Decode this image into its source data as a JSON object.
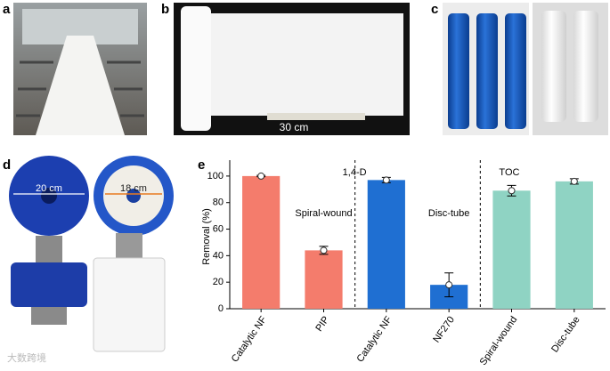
{
  "panels": {
    "a": "a",
    "b": "b",
    "c": "c",
    "d": "d",
    "e": "e"
  },
  "photo_labels": {
    "sheet_width": "30 cm",
    "disc_left": "20 cm",
    "disc_right": "18 cm"
  },
  "watermark": "大数跨境",
  "chart_data": {
    "type": "bar",
    "y_label": "Removal (%)",
    "categories": [
      "Catalytic NF",
      "PIP",
      "Catalytic NF",
      "NF270",
      "Spiral-wound",
      "Disc-tube"
    ],
    "values": [
      100,
      44,
      97,
      18,
      89,
      96
    ],
    "errors": [
      0.5,
      3,
      2,
      9,
      4,
      2
    ],
    "colors": [
      "#f47c6c",
      "#f47c6c",
      "#1f6fd2",
      "#1f6fd2",
      "#8fd3c3",
      "#8fd3c3"
    ],
    "annotations": [
      "1,4-D",
      "Spiral-wound",
      "Disc-tube",
      "TOC"
    ],
    "ylim": [
      0,
      112
    ],
    "yticks": [
      0,
      20,
      40,
      60,
      80,
      100
    ]
  }
}
